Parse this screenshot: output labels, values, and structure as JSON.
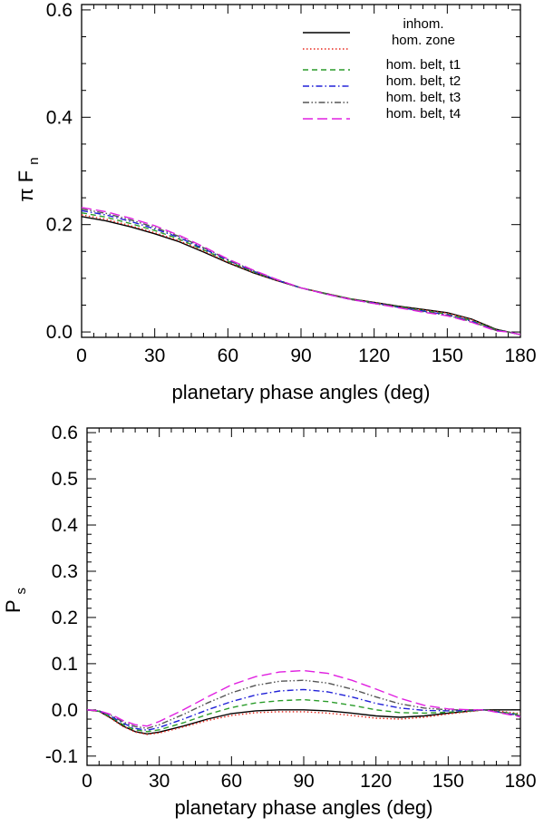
{
  "chart_data": [
    {
      "type": "line",
      "xlabel": "planetary phase angles (deg)",
      "ylabel": "π F",
      "ylabel_sub": "n",
      "xlim": [
        0,
        180
      ],
      "ylim": [
        -0.01,
        0.61
      ],
      "xticks": [
        0,
        30,
        60,
        90,
        120,
        150,
        180
      ],
      "xtick_labels": [
        "0",
        "30",
        "60",
        "90",
        "120",
        "150",
        "180"
      ],
      "yticks": [
        0.0,
        0.2,
        0.4,
        0.6
      ],
      "ytick_labels": [
        "0.0",
        "0.2",
        "0.4",
        "0.6"
      ],
      "legend_position": "top-right",
      "x": [
        0,
        10,
        20,
        30,
        40,
        50,
        60,
        70,
        80,
        90,
        100,
        110,
        120,
        130,
        140,
        150,
        160,
        170,
        175,
        180
      ],
      "series": [
        {
          "name": "inhom.",
          "color": "#000000",
          "dash": "solid",
          "values": [
            0.215,
            0.207,
            0.196,
            0.183,
            0.168,
            0.149,
            0.129,
            0.111,
            0.096,
            0.082,
            0.072,
            0.062,
            0.055,
            0.048,
            0.042,
            0.036,
            0.024,
            0.005,
            0.0,
            -0.005
          ]
        },
        {
          "name": "hom. zone",
          "color": "#e8281e",
          "dash": "dotted",
          "values": [
            0.218,
            0.21,
            0.198,
            0.185,
            0.17,
            0.151,
            0.13,
            0.112,
            0.096,
            0.082,
            0.072,
            0.062,
            0.055,
            0.047,
            0.041,
            0.035,
            0.023,
            0.004,
            0.0,
            -0.005
          ]
        },
        {
          "name": "hom. belt, t1",
          "color": "#2a9c2a",
          "dash": "dashed",
          "values": [
            0.222,
            0.214,
            0.202,
            0.189,
            0.173,
            0.153,
            0.132,
            0.113,
            0.097,
            0.082,
            0.072,
            0.062,
            0.054,
            0.047,
            0.04,
            0.033,
            0.021,
            0.004,
            0.0,
            -0.005
          ]
        },
        {
          "name": "hom. belt, t2",
          "color": "#2020d8",
          "dash": "dashdot",
          "values": [
            0.226,
            0.218,
            0.206,
            0.192,
            0.176,
            0.155,
            0.134,
            0.114,
            0.097,
            0.082,
            0.071,
            0.061,
            0.054,
            0.046,
            0.039,
            0.032,
            0.02,
            0.003,
            0.0,
            -0.005
          ]
        },
        {
          "name": "hom. belt, t3",
          "color": "#555555",
          "dash": "dashdotdot",
          "values": [
            0.229,
            0.221,
            0.209,
            0.195,
            0.178,
            0.157,
            0.135,
            0.115,
            0.098,
            0.082,
            0.071,
            0.061,
            0.053,
            0.046,
            0.038,
            0.031,
            0.019,
            0.003,
            0.0,
            -0.005
          ]
        },
        {
          "name": "hom. belt, t4",
          "color": "#e020e0",
          "dash": "longdash",
          "values": [
            0.232,
            0.224,
            0.212,
            0.198,
            0.18,
            0.159,
            0.136,
            0.116,
            0.098,
            0.082,
            0.071,
            0.061,
            0.053,
            0.045,
            0.037,
            0.03,
            0.018,
            0.002,
            0.0,
            -0.005
          ]
        }
      ]
    },
    {
      "type": "line",
      "xlabel": "planetary phase angles (deg)",
      "ylabel": "P",
      "ylabel_sub": "s",
      "xlim": [
        0,
        180
      ],
      "ylim": [
        -0.12,
        0.61
      ],
      "xticks": [
        0,
        30,
        60,
        90,
        120,
        150,
        180
      ],
      "xtick_labels": [
        "0",
        "30",
        "60",
        "90",
        "120",
        "150",
        "180"
      ],
      "yticks": [
        -0.1,
        0.0,
        0.1,
        0.2,
        0.3,
        0.4,
        0.5,
        0.6
      ],
      "ytick_labels": [
        "-0.1",
        "0.0",
        "0.1",
        "0.2",
        "0.3",
        "0.4",
        "0.5",
        "0.6"
      ],
      "x": [
        0,
        5,
        10,
        15,
        20,
        25,
        30,
        40,
        50,
        60,
        70,
        80,
        90,
        100,
        110,
        120,
        130,
        140,
        150,
        160,
        165,
        170,
        180
      ],
      "series": [
        {
          "name": "inhom.",
          "color": "#000000",
          "dash": "solid",
          "values": [
            0.0,
            -0.003,
            -0.018,
            -0.035,
            -0.047,
            -0.052,
            -0.048,
            -0.035,
            -0.02,
            -0.008,
            -0.002,
            0.0,
            0.0,
            -0.002,
            -0.007,
            -0.013,
            -0.016,
            -0.013,
            -0.007,
            -0.002,
            0.0,
            0.0,
            0.0
          ]
        },
        {
          "name": "hom. zone",
          "color": "#e8281e",
          "dash": "dotted",
          "values": [
            0.0,
            -0.003,
            -0.019,
            -0.036,
            -0.048,
            -0.053,
            -0.05,
            -0.037,
            -0.023,
            -0.012,
            -0.006,
            -0.004,
            -0.004,
            -0.007,
            -0.012,
            -0.018,
            -0.02,
            -0.016,
            -0.009,
            -0.003,
            0.0,
            -0.002,
            -0.008
          ]
        },
        {
          "name": "hom. belt, t1",
          "color": "#2a9c2a",
          "dash": "dashed",
          "values": [
            0.0,
            -0.003,
            -0.016,
            -0.032,
            -0.043,
            -0.047,
            -0.043,
            -0.028,
            -0.01,
            0.005,
            0.015,
            0.02,
            0.022,
            0.018,
            0.01,
            0.0,
            -0.006,
            -0.007,
            -0.005,
            -0.002,
            0.0,
            -0.003,
            -0.01
          ]
        },
        {
          "name": "hom. belt, t2",
          "color": "#2020d8",
          "dash": "dashdot",
          "values": [
            0.0,
            -0.002,
            -0.014,
            -0.029,
            -0.04,
            -0.044,
            -0.038,
            -0.02,
            0.0,
            0.018,
            0.032,
            0.041,
            0.044,
            0.039,
            0.028,
            0.014,
            0.004,
            -0.001,
            -0.002,
            -0.001,
            0.0,
            -0.004,
            -0.012
          ]
        },
        {
          "name": "hom. belt, t3",
          "color": "#555555",
          "dash": "dashdotdot",
          "values": [
            0.0,
            -0.002,
            -0.012,
            -0.026,
            -0.036,
            -0.04,
            -0.032,
            -0.01,
            0.015,
            0.037,
            0.053,
            0.062,
            0.064,
            0.058,
            0.045,
            0.028,
            0.013,
            0.004,
            0.0,
            0.0,
            0.0,
            -0.004,
            -0.013
          ]
        },
        {
          "name": "hom. belt, t4",
          "color": "#e020e0",
          "dash": "longdash",
          "values": [
            0.0,
            -0.002,
            -0.01,
            -0.023,
            -0.032,
            -0.035,
            -0.025,
            0.0,
            0.028,
            0.054,
            0.072,
            0.082,
            0.085,
            0.079,
            0.064,
            0.045,
            0.025,
            0.01,
            0.002,
            0.0,
            0.0,
            -0.005,
            -0.015
          ]
        }
      ]
    }
  ]
}
